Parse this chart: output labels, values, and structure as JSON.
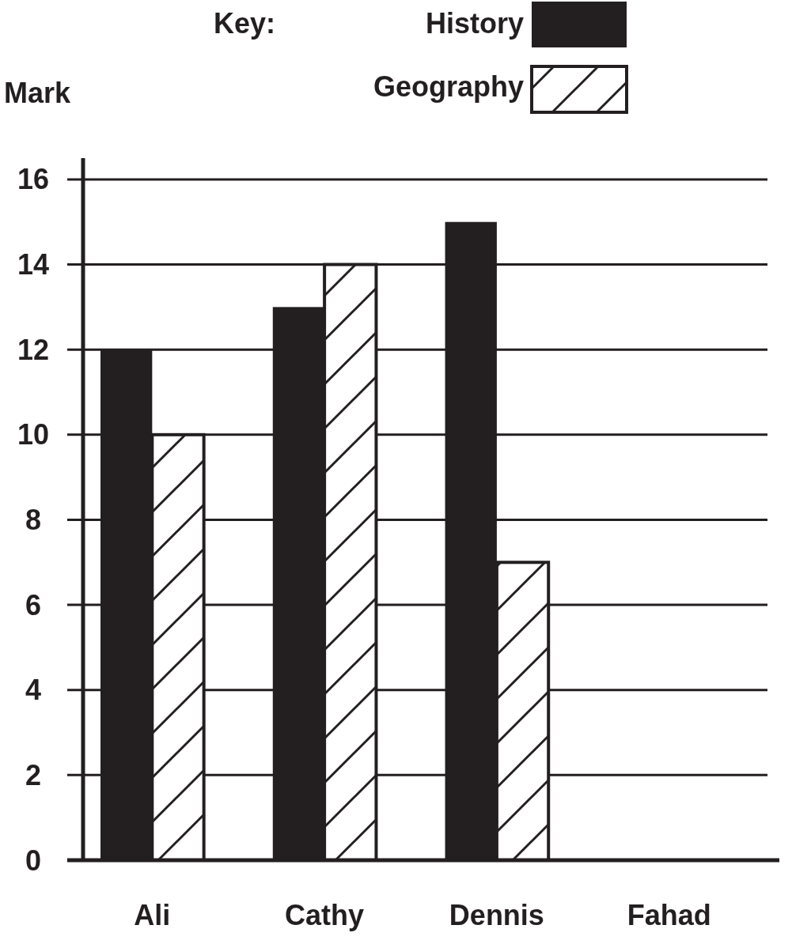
{
  "chart_data": {
    "type": "bar",
    "ylabel": "Mark",
    "legend_title": "Key:",
    "categories": [
      "Ali",
      "Cathy",
      "Dennis",
      "Fahad"
    ],
    "series": [
      {
        "name": "History",
        "color": "#231f20",
        "values": [
          12,
          13,
          15,
          null
        ]
      },
      {
        "name": "Geography",
        "color": "#ffffff",
        "values": [
          10,
          14,
          7,
          null
        ]
      }
    ],
    "ylim": [
      0,
      16.5
    ],
    "yticks": [
      0,
      2,
      4,
      6,
      8,
      10,
      12,
      14,
      16
    ],
    "grid": "y",
    "legend": "top right"
  }
}
